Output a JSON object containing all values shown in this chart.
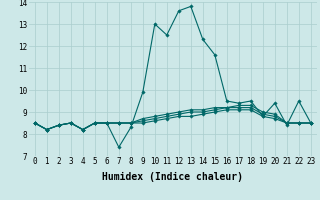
{
  "xlabel": "Humidex (Indice chaleur)",
  "ylabel": "",
  "xlim": [
    -0.5,
    23.5
  ],
  "ylim": [
    7,
    14
  ],
  "yticks": [
    7,
    8,
    9,
    10,
    11,
    12,
    13,
    14
  ],
  "xticks": [
    0,
    1,
    2,
    3,
    4,
    5,
    6,
    7,
    8,
    9,
    10,
    11,
    12,
    13,
    14,
    15,
    16,
    17,
    18,
    19,
    20,
    21,
    22,
    23
  ],
  "background_color": "#cde8e8",
  "line_color": "#006868",
  "lines": [
    [
      8.5,
      8.2,
      8.4,
      8.5,
      8.2,
      8.5,
      8.5,
      7.4,
      8.3,
      9.9,
      13.0,
      12.5,
      13.6,
      13.8,
      12.3,
      11.6,
      9.5,
      9.4,
      9.5,
      8.8,
      9.4,
      8.4,
      9.5,
      8.5
    ],
    [
      8.5,
      8.2,
      8.4,
      8.5,
      8.2,
      8.5,
      8.5,
      8.5,
      8.5,
      8.7,
      8.8,
      8.9,
      9.0,
      9.1,
      9.1,
      9.2,
      9.2,
      9.3,
      9.3,
      9.0,
      8.9,
      8.5,
      8.5,
      8.5
    ],
    [
      8.5,
      8.2,
      8.4,
      8.5,
      8.2,
      8.5,
      8.5,
      8.5,
      8.5,
      8.6,
      8.7,
      8.8,
      8.9,
      9.0,
      9.0,
      9.1,
      9.2,
      9.2,
      9.2,
      8.9,
      8.8,
      8.5,
      8.5,
      8.5
    ],
    [
      8.5,
      8.2,
      8.4,
      8.5,
      8.2,
      8.5,
      8.5,
      8.5,
      8.5,
      8.5,
      8.6,
      8.7,
      8.8,
      8.8,
      8.9,
      9.0,
      9.1,
      9.1,
      9.1,
      8.8,
      8.7,
      8.5,
      8.5,
      8.5
    ]
  ],
  "grid_color": "#aacece",
  "tick_fontsize": 5.5,
  "label_fontsize": 7.0,
  "figsize": [
    3.2,
    2.0
  ],
  "dpi": 100
}
